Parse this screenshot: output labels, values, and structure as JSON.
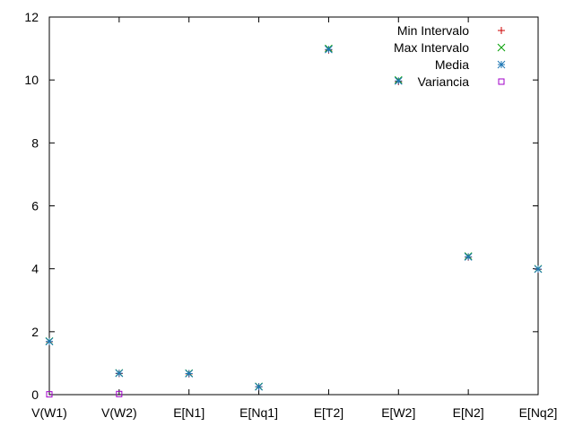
{
  "chart_data": {
    "type": "scatter",
    "categories": [
      "V(W1)",
      "V(W2)",
      "E[N1]",
      "E[Nq1]",
      "E[T2]",
      "E[W2]",
      "E[N2]",
      "E[Nq2]"
    ],
    "ylim": [
      0,
      12
    ],
    "yticks": [
      0,
      2,
      4,
      6,
      8,
      10,
      12
    ],
    "grid": false,
    "legend_position": "top-right",
    "series": [
      {
        "name": "Min Intervalo",
        "color": "#cc0000",
        "marker": "plus",
        "values": [
          1.68,
          0.67,
          0.66,
          0.25,
          10.95,
          9.95,
          4.37,
          3.98
        ]
      },
      {
        "name": "Max Intervalo",
        "color": "#009e00",
        "marker": "cross",
        "values": [
          1.7,
          0.69,
          0.68,
          0.26,
          11.0,
          10.0,
          4.4,
          4.0
        ]
      },
      {
        "name": "Media",
        "color": "#1f77b4",
        "marker": "star",
        "values": [
          1.69,
          0.68,
          0.67,
          0.25,
          10.97,
          9.97,
          4.38,
          3.99
        ]
      },
      {
        "name": "Variancia",
        "color": "#a000c8",
        "marker": "square",
        "values": [
          0.01,
          0.02,
          null,
          null,
          null,
          null,
          null,
          null
        ]
      }
    ]
  }
}
